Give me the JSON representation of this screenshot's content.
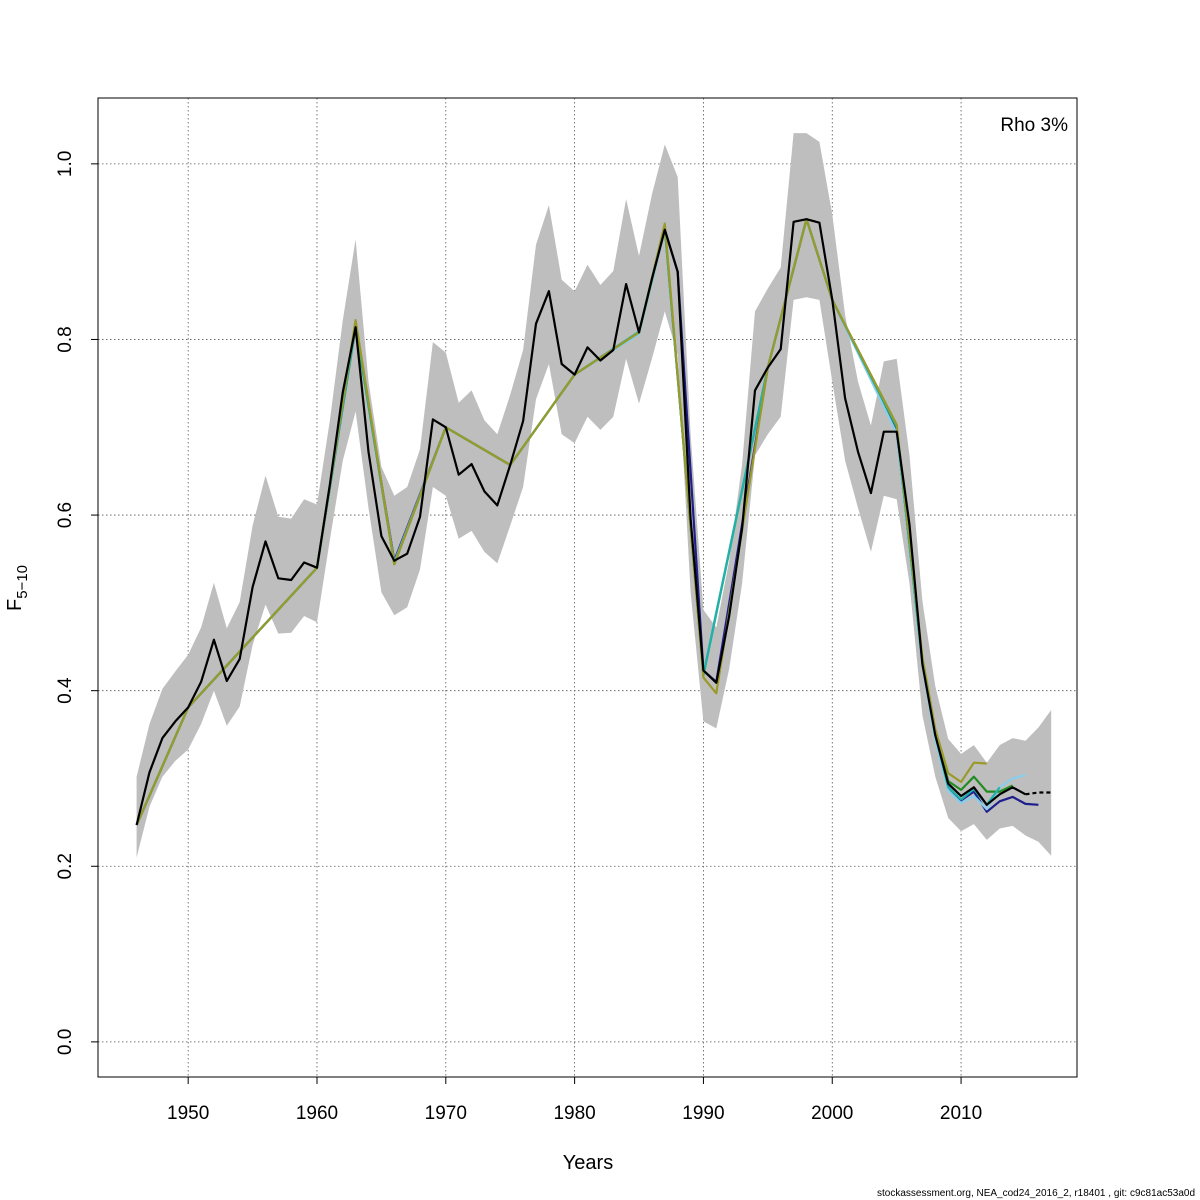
{
  "chart_data": {
    "type": "line",
    "xlabel": "Years",
    "ylabel_main": "F",
    "ylabel_sub": "5−10",
    "annotation": "Rho 3%",
    "footer": "stockassessment.org, NEA_cod24_2016_2, r18401 , git: c9c81ac53a0d",
    "xlim": [
      1943,
      2019
    ],
    "ylim": [
      -0.04,
      1.075
    ],
    "x_ticks": [
      1950,
      1960,
      1970,
      1980,
      1990,
      2000,
      2010
    ],
    "x_tick_labels": [
      "1950",
      "1960",
      "1970",
      "1980",
      "1990",
      "2000",
      "2010"
    ],
    "y_ticks": [
      0.0,
      0.2,
      0.4,
      0.6,
      0.8,
      1.0
    ],
    "y_tick_labels": [
      "0.0",
      "0.2",
      "0.4",
      "0.6",
      "0.8",
      "1.0"
    ],
    "grid": true,
    "band_color": "#bebebe",
    "band": {
      "x": [
        1946,
        1947,
        1948,
        1949,
        1950,
        1951,
        1952,
        1953,
        1954,
        1955,
        1956,
        1957,
        1958,
        1959,
        1960,
        1961,
        1962,
        1963,
        1964,
        1965,
        1966,
        1967,
        1968,
        1969,
        1970,
        1971,
        1972,
        1973,
        1974,
        1975,
        1976,
        1977,
        1978,
        1979,
        1980,
        1981,
        1982,
        1983,
        1984,
        1985,
        1986,
        1987,
        1988,
        1989,
        1990,
        1991,
        1992,
        1993,
        1994,
        1995,
        1996,
        1997,
        1998,
        1999,
        2000,
        2001,
        2002,
        2003,
        2004,
        2005,
        2006,
        2007,
        2008,
        2009,
        2010,
        2011,
        2012,
        2013,
        2014,
        2015,
        2016,
        2017
      ],
      "upper": [
        0.302,
        0.362,
        0.402,
        0.422,
        0.441,
        0.472,
        0.523,
        0.471,
        0.501,
        0.588,
        0.645,
        0.598,
        0.596,
        0.618,
        0.612,
        0.708,
        0.822,
        0.914,
        0.752,
        0.655,
        0.622,
        0.632,
        0.675,
        0.797,
        0.785,
        0.728,
        0.742,
        0.708,
        0.692,
        0.737,
        0.788,
        0.908,
        0.953,
        0.868,
        0.855,
        0.885,
        0.862,
        0.878,
        0.96,
        0.895,
        0.965,
        1.022,
        0.985,
        0.692,
        0.492,
        0.472,
        0.548,
        0.658,
        0.832,
        0.858,
        0.882,
        1.035,
        1.035,
        1.025,
        0.942,
        0.828,
        0.752,
        0.702,
        0.775,
        0.778,
        0.668,
        0.502,
        0.405,
        0.345,
        0.328,
        0.338,
        0.318,
        0.338,
        0.346,
        0.343,
        0.358,
        0.378
      ],
      "lower": [
        0.21,
        0.268,
        0.302,
        0.32,
        0.333,
        0.362,
        0.4,
        0.36,
        0.382,
        0.452,
        0.498,
        0.465,
        0.466,
        0.485,
        0.478,
        0.572,
        0.662,
        0.718,
        0.608,
        0.512,
        0.486,
        0.495,
        0.538,
        0.632,
        0.622,
        0.573,
        0.582,
        0.558,
        0.545,
        0.588,
        0.632,
        0.732,
        0.772,
        0.692,
        0.682,
        0.712,
        0.697,
        0.712,
        0.778,
        0.727,
        0.778,
        0.832,
        0.782,
        0.512,
        0.365,
        0.357,
        0.425,
        0.522,
        0.668,
        0.692,
        0.712,
        0.845,
        0.848,
        0.845,
        0.752,
        0.662,
        0.608,
        0.558,
        0.622,
        0.618,
        0.522,
        0.372,
        0.302,
        0.255,
        0.24,
        0.248,
        0.23,
        0.243,
        0.246,
        0.235,
        0.228,
        0.212
      ]
    },
    "series": [
      {
        "color": "#000000",
        "dashed_from": 2015,
        "x": [
          1946,
          1947,
          1948,
          1949,
          1950,
          1951,
          1952,
          1953,
          1954,
          1955,
          1956,
          1957,
          1958,
          1959,
          1960,
          1961,
          1962,
          1963,
          1964,
          1965,
          1966,
          1967,
          1968,
          1969,
          1970,
          1971,
          1972,
          1973,
          1974,
          1975,
          1976,
          1977,
          1978,
          1979,
          1980,
          1981,
          1982,
          1983,
          1984,
          1985,
          1986,
          1987,
          1988,
          1989,
          1990,
          1991,
          1992,
          1993,
          1994,
          1995,
          1996,
          1997,
          1998,
          1999,
          2000,
          2001,
          2002,
          2003,
          2004,
          2005,
          2006,
          2007,
          2008,
          2009,
          2010,
          2011,
          2012,
          2013,
          2014,
          2015,
          2016,
          2017
        ],
        "y": [
          0.247,
          0.307,
          0.346,
          0.365,
          0.381,
          0.41,
          0.458,
          0.411,
          0.436,
          0.518,
          0.57,
          0.528,
          0.526,
          0.546,
          0.54,
          0.635,
          0.74,
          0.814,
          0.672,
          0.576,
          0.548,
          0.556,
          0.598,
          0.709,
          0.7,
          0.646,
          0.658,
          0.627,
          0.611,
          0.657,
          0.707,
          0.818,
          0.855,
          0.772,
          0.76,
          0.791,
          0.776,
          0.788,
          0.863,
          0.808,
          0.869,
          0.925,
          0.877,
          0.596,
          0.423,
          0.409,
          0.485,
          0.585,
          0.742,
          0.768,
          0.789,
          0.934,
          0.937,
          0.933,
          0.845,
          0.733,
          0.672,
          0.625,
          0.695,
          0.695,
          0.589,
          0.43,
          0.349,
          0.294,
          0.28,
          0.29,
          0.27,
          0.282,
          0.29,
          0.282,
          0.284,
          0.284
        ]
      },
      {
        "color": "#1e1e8c",
        "x": [
          1946,
          1950,
          1960,
          1963,
          1966,
          1970,
          1975,
          1980,
          1985,
          1987,
          1988,
          1990,
          1991,
          1995,
          1998,
          2000,
          2005,
          2007,
          2008,
          2009,
          2010,
          2011,
          2012,
          2013,
          2014,
          2015,
          2016
        ],
        "y": [
          0.247,
          0.381,
          0.54,
          0.814,
          0.548,
          0.7,
          0.657,
          0.76,
          0.808,
          0.925,
          0.877,
          0.423,
          0.41,
          0.768,
          0.937,
          0.845,
          0.695,
          0.43,
          0.346,
          0.29,
          0.275,
          0.285,
          0.262,
          0.274,
          0.279,
          0.271,
          0.27
        ]
      },
      {
        "color": "#87ceeb",
        "x": [
          1946,
          1950,
          1960,
          1963,
          1966,
          1970,
          1975,
          1980,
          1985,
          1987,
          1990,
          1995,
          1998,
          2000,
          2005,
          2007,
          2008,
          2009,
          2010,
          2011,
          2012,
          2013,
          2014,
          2015
        ],
        "y": [
          0.247,
          0.381,
          0.54,
          0.814,
          0.546,
          0.7,
          0.657,
          0.76,
          0.806,
          0.925,
          0.42,
          0.768,
          0.937,
          0.845,
          0.693,
          0.428,
          0.344,
          0.286,
          0.272,
          0.28,
          0.265,
          0.29,
          0.3,
          0.304
        ]
      },
      {
        "color": "#228b22",
        "x": [
          1946,
          1950,
          1960,
          1963,
          1966,
          1970,
          1975,
          1980,
          1985,
          1987,
          1990,
          1995,
          1998,
          2000,
          2005,
          2007,
          2008,
          2009,
          2010,
          2011,
          2012,
          2013,
          2014
        ],
        "y": [
          0.247,
          0.381,
          0.54,
          0.815,
          0.544,
          0.7,
          0.657,
          0.76,
          0.808,
          0.927,
          0.418,
          0.768,
          0.937,
          0.845,
          0.7,
          0.432,
          0.352,
          0.297,
          0.287,
          0.302,
          0.285,
          0.285,
          0.292
        ]
      },
      {
        "color": "#20b2aa",
        "x": [
          1946,
          1950,
          1960,
          1963,
          1966,
          1970,
          1975,
          1980,
          1985,
          1987,
          1990,
          1995,
          1998,
          2000,
          2005,
          2007,
          2008,
          2009,
          2010,
          2011,
          2012,
          2013
        ],
        "y": [
          0.247,
          0.381,
          0.54,
          0.816,
          0.545,
          0.7,
          0.657,
          0.76,
          0.809,
          0.928,
          0.418,
          0.768,
          0.937,
          0.845,
          0.701,
          0.433,
          0.35,
          0.29,
          0.276,
          0.288,
          0.27,
          0.29
        ]
      },
      {
        "color": "#9a9a2a",
        "x": [
          1946,
          1950,
          1960,
          1963,
          1966,
          1970,
          1975,
          1980,
          1985,
          1987,
          1990,
          1991,
          1995,
          1998,
          2000,
          2005,
          2007,
          2008,
          2009,
          2010,
          2011,
          2012
        ],
        "y": [
          0.247,
          0.381,
          0.54,
          0.822,
          0.544,
          0.7,
          0.657,
          0.76,
          0.808,
          0.932,
          0.415,
          0.397,
          0.768,
          0.937,
          0.845,
          0.703,
          0.438,
          0.356,
          0.306,
          0.296,
          0.318,
          0.317
        ]
      }
    ]
  }
}
